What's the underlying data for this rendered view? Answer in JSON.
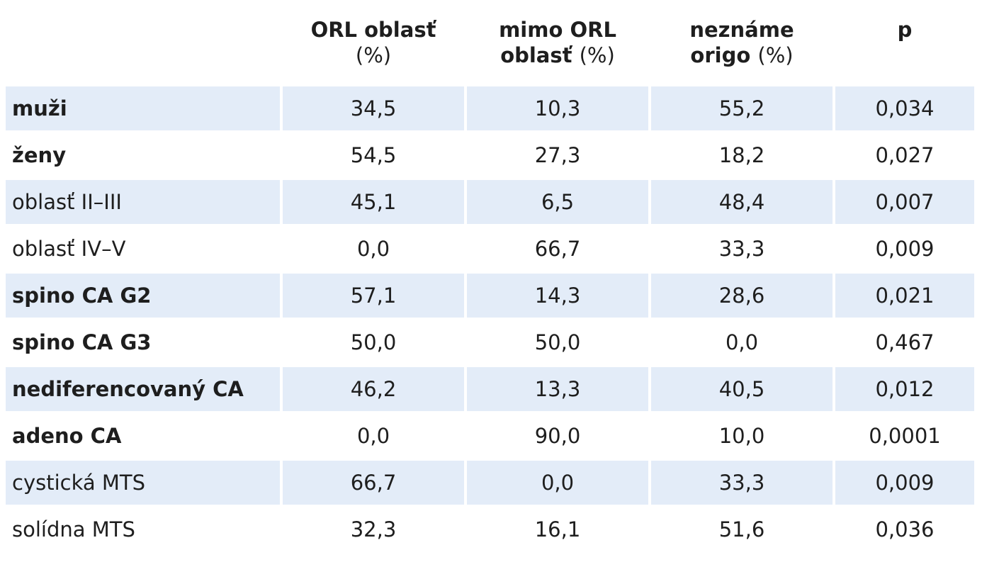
{
  "table": {
    "headers": [
      {
        "main": "",
        "sub": ""
      },
      {
        "main": "ORL oblasť",
        "sub": "(%)"
      },
      {
        "main": "mimo ORL",
        "sub": "oblasť (%)"
      },
      {
        "main": "neznáme",
        "sub": "origo (%)"
      },
      {
        "main": "p",
        "sub": ""
      }
    ],
    "rows": [
      {
        "label": "muži",
        "bold": true,
        "orl": "34,5",
        "mimo": "10,3",
        "nezname": "55,2",
        "p": "0,034"
      },
      {
        "label": "ženy",
        "bold": true,
        "orl": "54,5",
        "mimo": "27,3",
        "nezname": "18,2",
        "p": "0,027"
      },
      {
        "label": "oblasť II–III",
        "bold": false,
        "orl": "45,1",
        "mimo": "6,5",
        "nezname": "48,4",
        "p": "0,007"
      },
      {
        "label": "oblasť IV–V",
        "bold": false,
        "orl": "0,0",
        "mimo": "66,7",
        "nezname": "33,3",
        "p": "0,009"
      },
      {
        "label": "spino CA G2",
        "bold": true,
        "orl": "57,1",
        "mimo": "14,3",
        "nezname": "28,6",
        "p": "0,021"
      },
      {
        "label": "spino CA G3",
        "bold": true,
        "orl": "50,0",
        "mimo": "50,0",
        "nezname": "0,0",
        "p": "0,467"
      },
      {
        "label": "nediferencovaný CA",
        "bold": true,
        "orl": "46,2",
        "mimo": "13,3",
        "nezname": "40,5",
        "p": "0,012"
      },
      {
        "label": "adeno CA",
        "bold": true,
        "orl": "0,0",
        "mimo": "90,0",
        "nezname": "10,0",
        "p": "0,0001"
      },
      {
        "label": "cystická MTS",
        "bold": false,
        "orl": "66,7",
        "mimo": "0,0",
        "nezname": "33,3",
        "p": "0,009"
      },
      {
        "label": "solídna MTS",
        "bold": false,
        "orl": "32,3",
        "mimo": "16,1",
        "nezname": "51,6",
        "p": "0,036"
      }
    ],
    "shade_color": "#e3ecf8"
  }
}
